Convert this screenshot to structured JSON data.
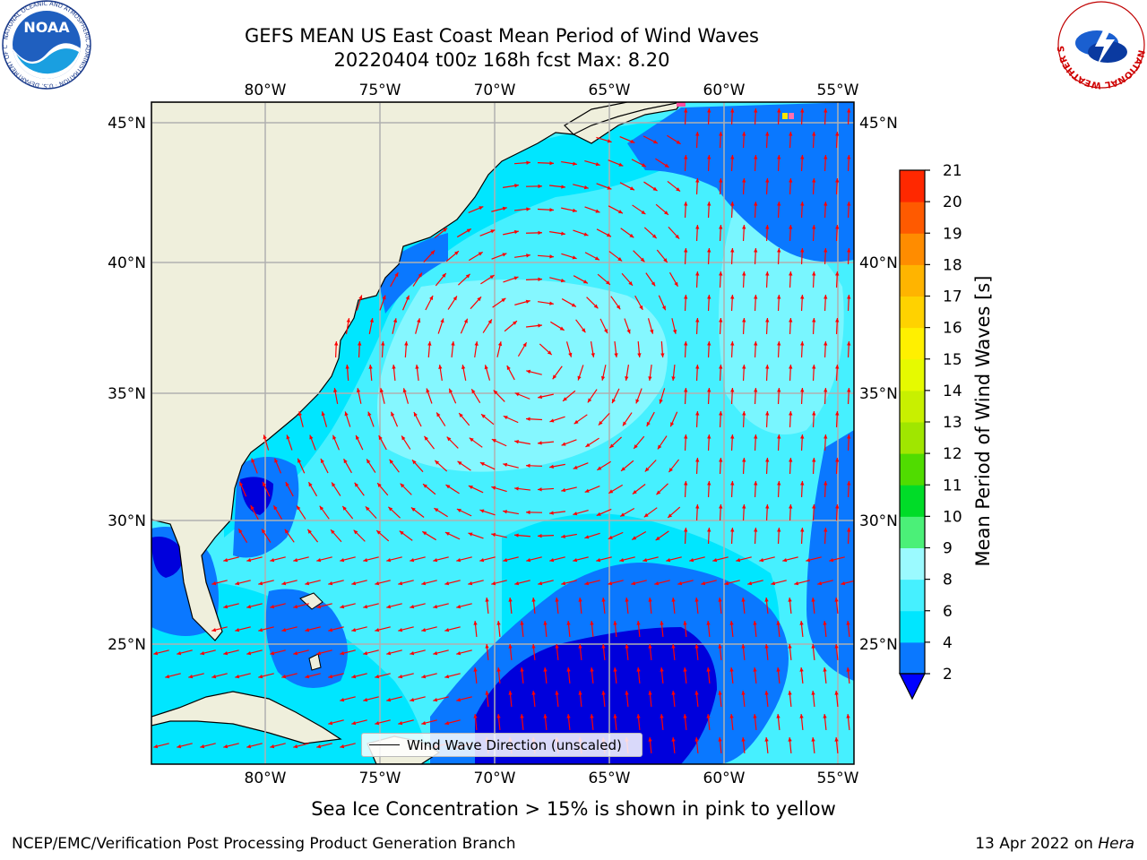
{
  "title_line1": "GEFS MEAN US East Coast Mean Period of Wind Waves",
  "title_line2": "20220404 t00z 168h fcst   Max: 8.20",
  "lon_ticks": [
    "80°W",
    "75°W",
    "70°W",
    "65°W",
    "60°W",
    "55°W"
  ],
  "lat_ticks": [
    "45°N",
    "40°N",
    "35°N",
    "30°N",
    "25°N"
  ],
  "legend_label": "Wind Wave Direction (unscaled)",
  "colorbar": {
    "label": "Mean Period of Wind Waves [s]",
    "ticks": [
      "2",
      "4",
      "6",
      "8",
      "9",
      "10",
      "11",
      "12",
      "13",
      "14",
      "15",
      "16",
      "17",
      "18",
      "19",
      "20",
      "21"
    ],
    "colors": [
      "#0a78ff",
      "#00e6ff",
      "#46f0ff",
      "#9bfaff",
      "#4bf078",
      "#00dc28",
      "#50dc00",
      "#a0e600",
      "#c8f000",
      "#e6fa00",
      "#fff000",
      "#ffd200",
      "#ffb400",
      "#ff8c00",
      "#ff5a00",
      "#ff2800"
    ],
    "extend_color": "#0000ff"
  },
  "subtitle": "Sea Ice Concentration > 15% is shown in pink to yellow",
  "footer_left": "NCEP/EMC/Verification Post Processing Product Generation Branch",
  "footer_right_date": "13 Apr 2022 on",
  "footer_right_host": "Hera",
  "logos": {
    "noaa_text": "NOAA",
    "noaa_ring": "NATIONAL OCEANIC AND ATMOSPHERIC ADMINISTRATION · U.S. DEPARTMENT OF COMMERCE",
    "nws_ring": "NATIONAL WEATHER SERVICE"
  },
  "colors": {
    "land": "#efefdc",
    "coast": "#000000",
    "grid": "#b0b0b0",
    "arrow": "#ff0000",
    "deep_blue": "#0000dc",
    "blue": "#0a78ff",
    "cyan": "#00e6ff",
    "light_cyan": "#46f0ff",
    "pale_cyan": "#9bfaff"
  }
}
